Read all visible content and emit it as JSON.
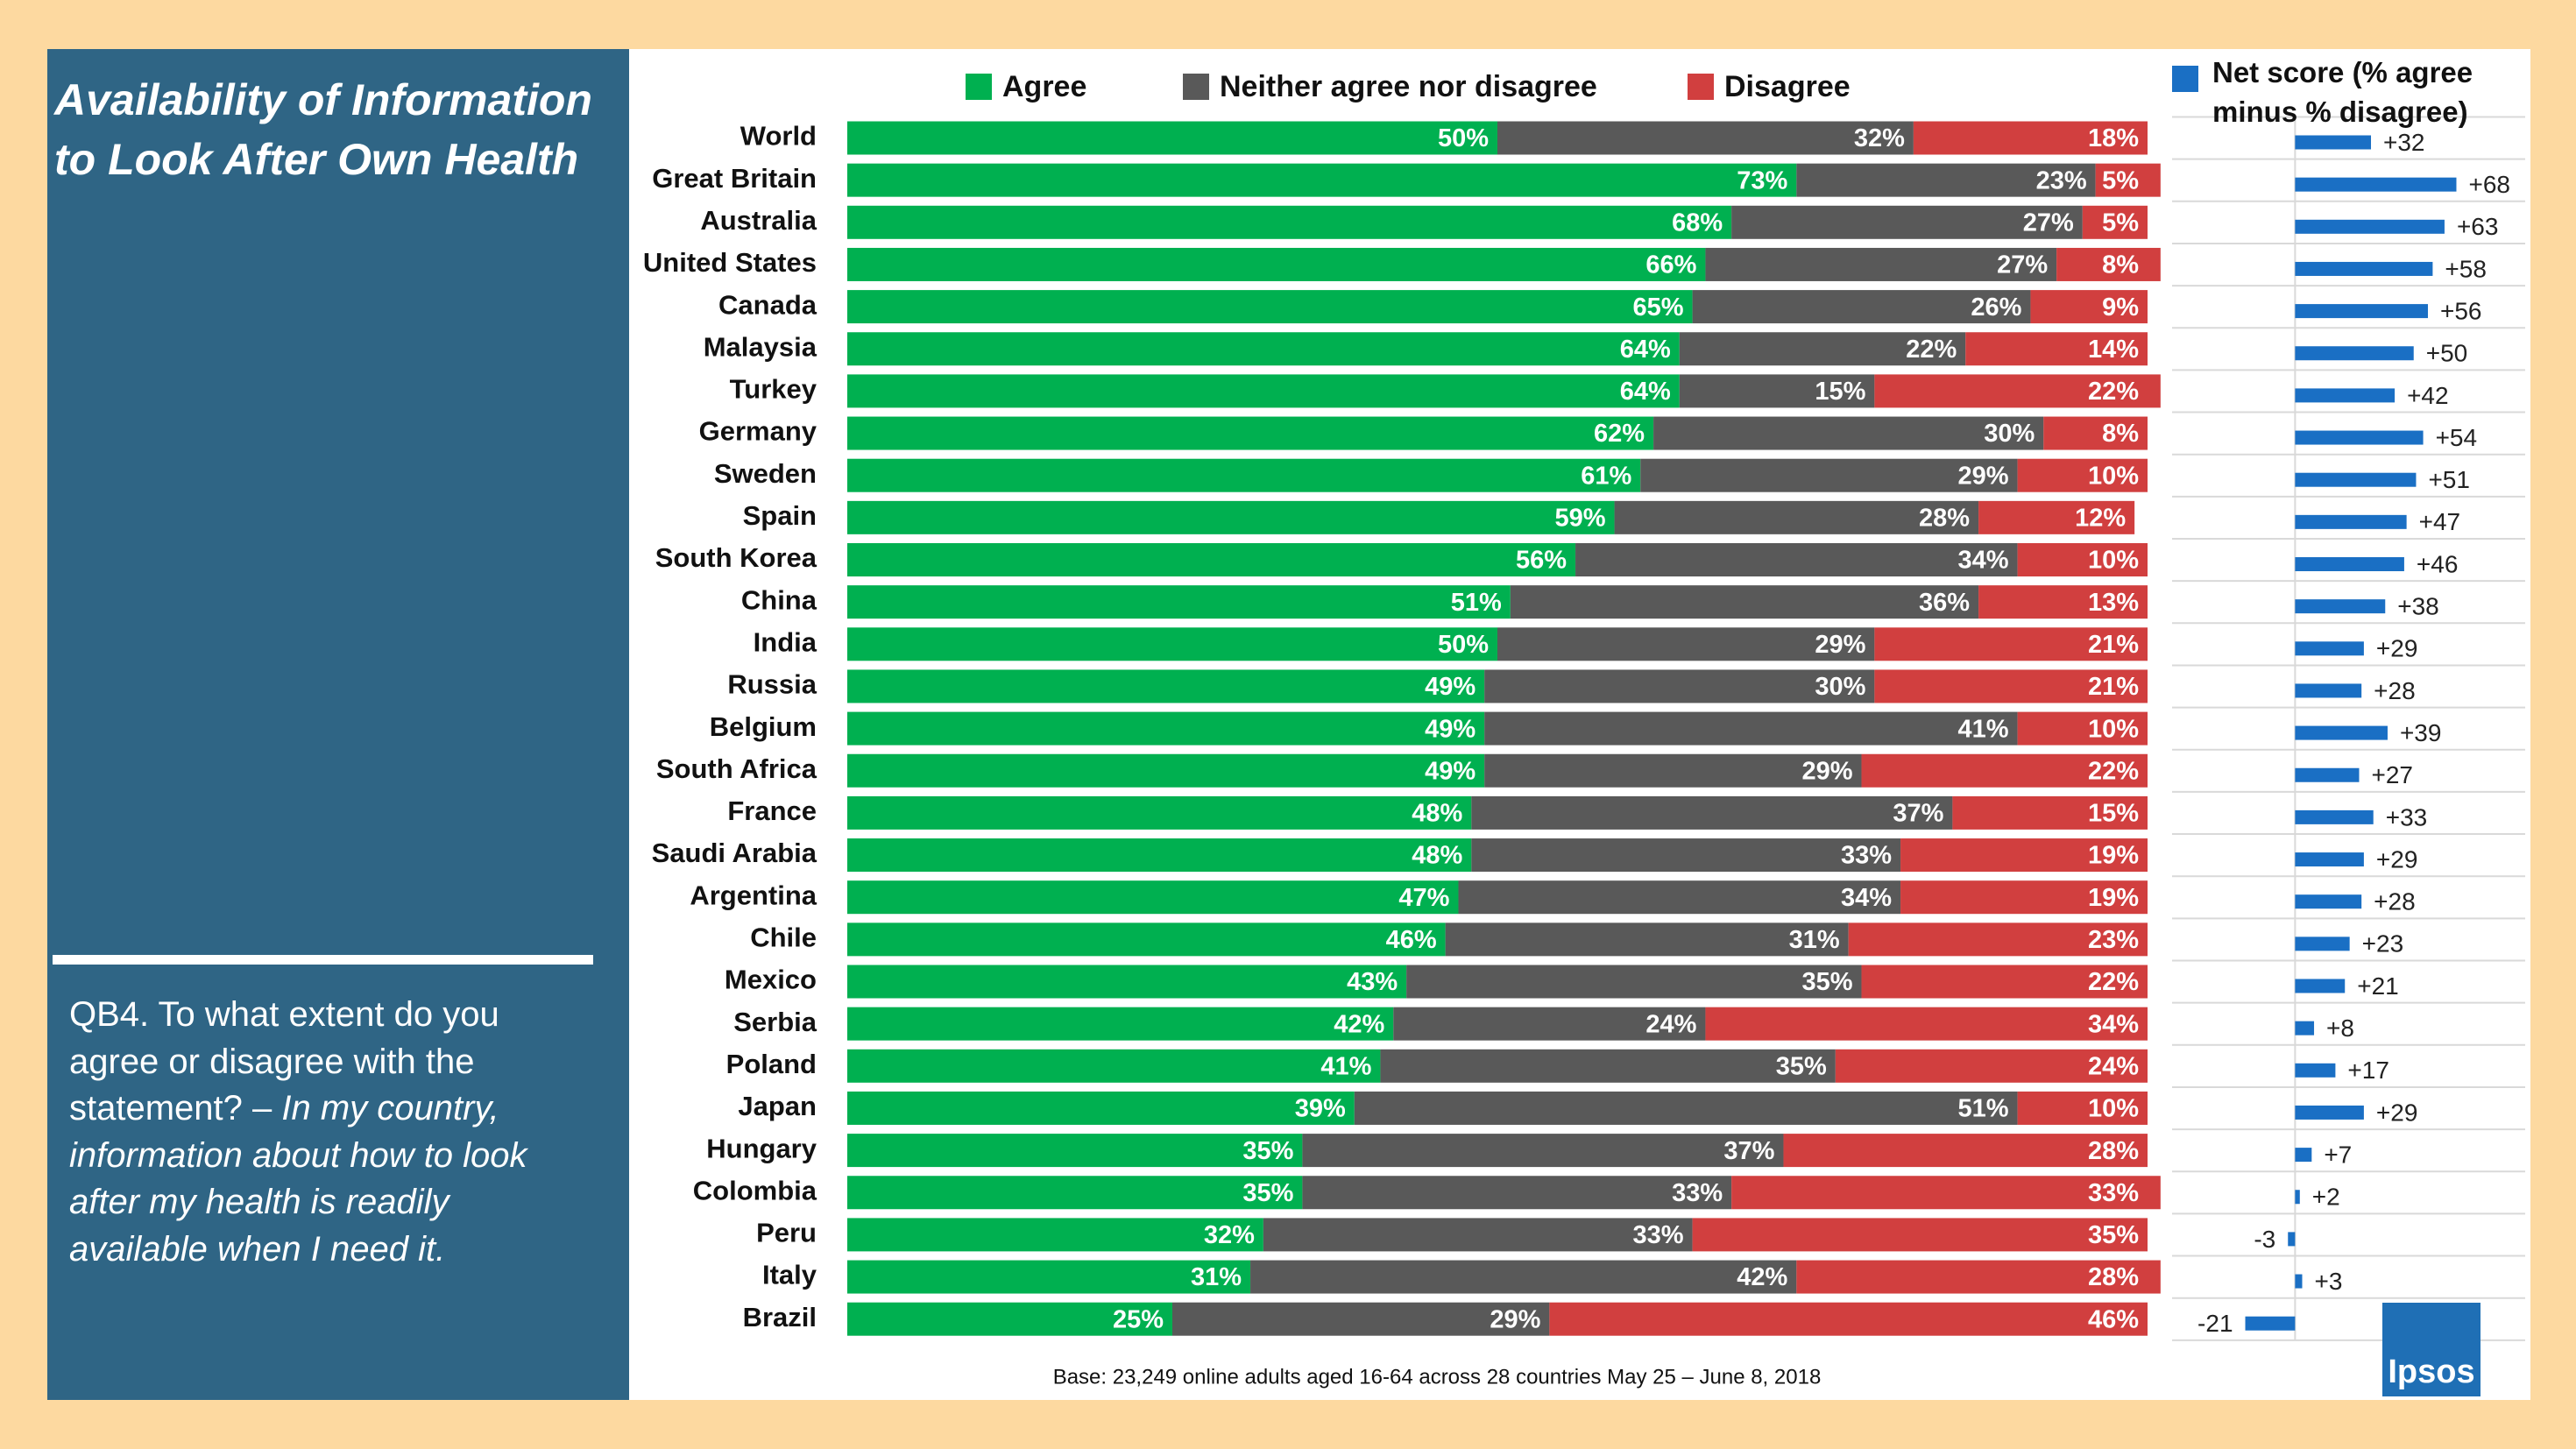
{
  "panel": {
    "title": "Availability of Information to Look After Own Health",
    "question": "QB4. To what extent do you agree or disagree with the statement? –",
    "statement": "In my country, information about how to look after my health is readily available when I need it."
  },
  "logo": "Ipsos",
  "chart_data": [
    {
      "type": "stacked_bar",
      "categories": [
        "World",
        "Great Britain",
        "Australia",
        "United States",
        "Canada",
        "Malaysia",
        "Turkey",
        "Germany",
        "Sweden",
        "Spain",
        "South Korea",
        "China",
        "India",
        "Russia",
        "Belgium",
        "South Africa",
        "France",
        "Saudi Arabia",
        "Argentina",
        "Chile",
        "Mexico",
        "Serbia",
        "Poland",
        "Japan",
        "Hungary",
        "Colombia",
        "Peru",
        "Italy",
        "Brazil"
      ],
      "series": [
        {
          "name": "Agree",
          "color": "#00b050",
          "values": [
            50,
            73,
            68,
            66,
            65,
            64,
            64,
            62,
            61,
            59,
            56,
            51,
            50,
            49,
            49,
            49,
            48,
            48,
            47,
            46,
            43,
            42,
            41,
            39,
            35,
            35,
            32,
            31,
            25
          ],
          "value_labels": [
            "50%",
            "73%",
            "68%",
            "66%",
            "65%",
            "64%",
            "64%",
            "62%",
            "61%",
            "59%",
            "56%",
            "51%",
            "50%",
            "49%",
            "49%",
            "49%",
            "48%",
            "48%",
            "47%",
            "46%",
            "43%",
            "42%",
            "41%",
            "39%",
            "35%",
            "35%",
            "32%",
            "31%",
            "25%"
          ]
        },
        {
          "name": "Neither agree nor disagree",
          "color": "#595959",
          "values": [
            32,
            23,
            27,
            27,
            26,
            22,
            15,
            30,
            29,
            28,
            34,
            36,
            29,
            30,
            41,
            29,
            37,
            33,
            34,
            31,
            35,
            24,
            35,
            51,
            37,
            33,
            33,
            42,
            29
          ],
          "value_labels": [
            "32%",
            "23%",
            "27%",
            "27%",
            "26%",
            "22%",
            "15%",
            "30%",
            "29%",
            "28%",
            "34%",
            "36%",
            "29%",
            "30%",
            "41%",
            "29%",
            "37%",
            "33%",
            "34%",
            "31%",
            "35%",
            "24%",
            "35%",
            "51%",
            "37%",
            "33%",
            "33%",
            "42%",
            "29%"
          ]
        },
        {
          "name": "Disagree",
          "color": "#d13f3f",
          "values": [
            18,
            5,
            5,
            8,
            9,
            14,
            22,
            8,
            10,
            12,
            10,
            13,
            21,
            21,
            10,
            22,
            15,
            19,
            19,
            23,
            22,
            34,
            24,
            10,
            28,
            33,
            35,
            28,
            46
          ],
          "value_labels": [
            "18%",
            "5%",
            "5%",
            "8%",
            "9%",
            "14%",
            "22%",
            "8%",
            "10%",
            "12%",
            "10%",
            "13%",
            "21%",
            "21%",
            "10%",
            "22%",
            "15%",
            "19%",
            "19%",
            "23%",
            "22%",
            "34%",
            "24%",
            "10%",
            "28%",
            "33%",
            "35%",
            "28%",
            "46%"
          ]
        }
      ],
      "xlim": [
        0,
        100
      ],
      "legend": "top",
      "note": "Base: 23,249 online adults aged 16-64 across 28 countries  May 25 – June 8, 2018"
    },
    {
      "type": "bar",
      "title": "Net score (% agree minus % disagree)",
      "color": "#1a6fc4",
      "values": [
        32,
        68,
        63,
        58,
        56,
        50,
        42,
        54,
        51,
        47,
        46,
        38,
        29,
        28,
        39,
        27,
        33,
        29,
        28,
        23,
        21,
        8,
        17,
        29,
        7,
        2,
        -3,
        3,
        -21
      ],
      "value_labels": [
        "+32",
        "+68",
        "+63",
        "+58",
        "+56",
        "+50",
        "+42",
        "+54",
        "+51",
        "+47",
        "+46",
        "+38",
        "+29",
        "+28",
        "+39",
        "+27",
        "+33",
        "+29",
        "+28",
        "+23",
        "+21",
        "+8",
        "+17",
        "+29",
        "+7",
        "+2",
        "-3",
        "+3",
        "-21"
      ],
      "xlim": [
        -50,
        97
      ]
    }
  ]
}
